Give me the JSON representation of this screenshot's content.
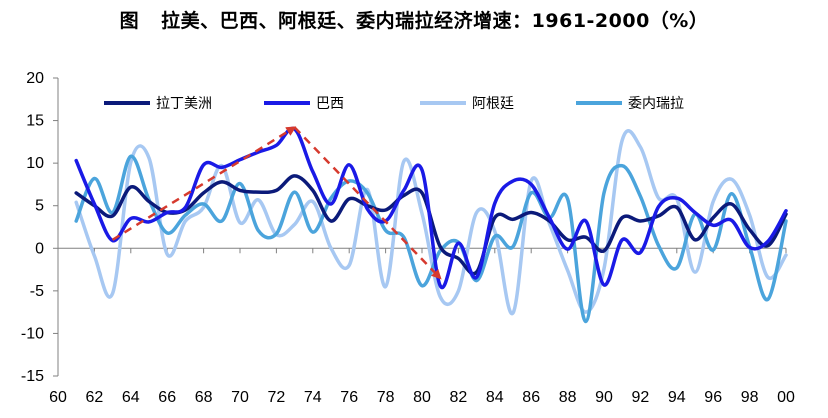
{
  "title": {
    "prefix": "图",
    "text": "拉美、巴西、阿根廷、委内瑞拉经济增速：1961-2000（%）"
  },
  "chart_data": {
    "type": "line",
    "title": "拉美、巴西、阿根廷、委内瑞拉经济增速：1961-2000（%）",
    "xlabel": "",
    "ylabel": "",
    "x": [
      61,
      62,
      63,
      64,
      65,
      66,
      67,
      68,
      69,
      70,
      71,
      72,
      73,
      74,
      75,
      76,
      77,
      78,
      79,
      80,
      81,
      82,
      83,
      84,
      85,
      86,
      87,
      88,
      89,
      90,
      91,
      92,
      93,
      94,
      95,
      96,
      97,
      98,
      99,
      100
    ],
    "xlim": [
      60,
      100
    ],
    "ylim": [
      -15,
      20
    ],
    "x_ticks": [
      "60",
      "62",
      "64",
      "66",
      "68",
      "70",
      "72",
      "74",
      "76",
      "78",
      "80",
      "82",
      "84",
      "86",
      "88",
      "90",
      "92",
      "94",
      "96",
      "98",
      "00"
    ],
    "x_tick_values": [
      60,
      62,
      64,
      66,
      68,
      70,
      72,
      74,
      76,
      78,
      80,
      82,
      84,
      86,
      88,
      90,
      92,
      94,
      96,
      98,
      100
    ],
    "y_ticks": [
      "20",
      "15",
      "10",
      "5",
      "0",
      "-5",
      "-10",
      "-15"
    ],
    "y_tick_values": [
      20,
      15,
      10,
      5,
      0,
      -5,
      -10,
      -15
    ],
    "legend_position": "top",
    "series": [
      {
        "name": "拉丁美洲",
        "color": "#0b1a7a",
        "values": [
          6.5,
          5,
          3.8,
          7.2,
          5.5,
          4.2,
          4.5,
          6.5,
          7.8,
          6.8,
          6.6,
          6.8,
          8.5,
          6.8,
          3.2,
          5.8,
          5.0,
          4.5,
          6.2,
          6.5,
          0.2,
          -1.2,
          -2.8,
          3.6,
          3.4,
          4.2,
          3.2,
          1.0,
          1.3,
          -0.3,
          3.6,
          3.2,
          3.8,
          4.8,
          1.0,
          3.6,
          5.2,
          2.2,
          0.3,
          4.0
        ]
      },
      {
        "name": "巴西",
        "color": "#1a1ae6",
        "values": [
          10.3,
          5.2,
          0.9,
          3.5,
          3.1,
          4.2,
          4.8,
          9.8,
          9.5,
          10.4,
          11.3,
          12.1,
          14.0,
          9.0,
          5.2,
          9.8,
          4.6,
          3.2,
          6.8,
          9.2,
          -4.4,
          0.6,
          -3.4,
          5.3,
          7.9,
          7.5,
          3.6,
          -0.1,
          3.2,
          -4.3,
          1.0,
          -0.5,
          4.9,
          5.9,
          4.2,
          2.7,
          3.3,
          0.1,
          0.8,
          4.4
        ]
      },
      {
        "name": "阿根廷",
        "color": "#a7c8f2",
        "values": [
          5.4,
          -0.9,
          -5.3,
          10.1,
          10.6,
          -0.7,
          3.2,
          4.8,
          9.7,
          3.0,
          5.7,
          1.6,
          2.8,
          5.5,
          0.0,
          -2.0,
          6.9,
          -4.5,
          10.2,
          4.1,
          -5.7,
          -5.0,
          4.2,
          2.0,
          -7.6,
          7.9,
          2.9,
          -2.6,
          -7.5,
          -2.4,
          12.7,
          11.9,
          5.9,
          5.8,
          -2.8,
          5.5,
          8.1,
          3.9,
          -3.4,
          -0.8
        ]
      },
      {
        "name": "委内瑞拉",
        "color": "#4ba4dc",
        "values": [
          3.2,
          8.2,
          4.2,
          10.8,
          5.7,
          1.8,
          3.9,
          5.2,
          3.2,
          7.6,
          2.1,
          1.7,
          6.6,
          1.9,
          5.9,
          7.9,
          6.5,
          2.1,
          1.3,
          -4.4,
          -0.3,
          0.7,
          -3.8,
          1.4,
          0.2,
          6.5,
          3.6,
          5.8,
          -8.6,
          6.5,
          9.7,
          6.1,
          0.3,
          -2.3,
          4.0,
          -0.2,
          6.4,
          0.2,
          -6.0,
          3.2
        ]
      }
    ],
    "annotations": [
      {
        "type": "dashed-arrow",
        "color": "#d63a2e",
        "points": [
          [
            63,
            1
          ],
          [
            73,
            14.2
          ]
        ]
      },
      {
        "type": "dashed-arrow",
        "color": "#d63a2e",
        "points": [
          [
            73,
            14.2
          ],
          [
            81,
            -3.5
          ]
        ]
      }
    ]
  }
}
